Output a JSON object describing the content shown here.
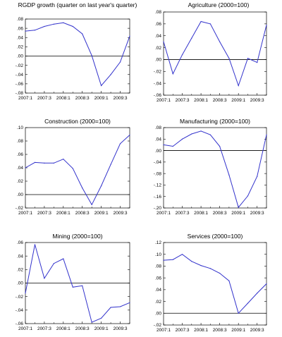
{
  "chart_data": [
    {
      "type": "line",
      "title": "RGDP growth (quarter on last year's quarter)",
      "x": [
        "2007:1",
        "2007:2",
        "2007:3",
        "2007:4",
        "2008:1",
        "2008:2",
        "2008:3",
        "2008:4",
        "2009:1",
        "2009:2",
        "2009:3",
        "2009:4"
      ],
      "xticks": [
        "2007:1",
        "2007:3",
        "2008:1",
        "2008:3",
        "2009:1",
        "2009:3"
      ],
      "ylim": [
        -0.08,
        0.08
      ],
      "yticks": [
        ".08",
        ".06",
        ".04",
        ".02",
        ".00",
        "-.02",
        "-.04",
        "-.06",
        "-.08"
      ],
      "values": [
        0.054,
        0.056,
        0.064,
        0.069,
        0.072,
        0.064,
        0.048,
        0.001,
        -0.064,
        -0.04,
        -0.013,
        0.043
      ],
      "color": "#3333cc"
    },
    {
      "type": "line",
      "title": "Agriculture (2000=100)",
      "x": [
        "2007:1",
        "2007:2",
        "2007:3",
        "2007:4",
        "2008:1",
        "2008:2",
        "2008:3",
        "2008:4",
        "2009:1",
        "2009:2",
        "2009:3",
        "2009:4"
      ],
      "xticks": [
        "2007:1",
        "2007:3",
        "2008:1",
        "2008:3",
        "2009:1",
        "2009:3"
      ],
      "ylim": [
        -0.06,
        0.08
      ],
      "yticks": [
        ".08",
        ".06",
        ".04",
        ".02",
        ".00",
        "-.02",
        "-.04",
        "-.06"
      ],
      "values": [
        0.03,
        -0.024,
        0.008,
        0.036,
        0.064,
        0.06,
        0.03,
        0.002,
        -0.044,
        0.002,
        -0.005,
        0.058
      ],
      "color": "#3333cc"
    },
    {
      "type": "line",
      "title": "Construction (2000=100)",
      "x": [
        "2007:1",
        "2007:2",
        "2007:3",
        "2007:4",
        "2008:1",
        "2008:2",
        "2008:3",
        "2008:4",
        "2009:1",
        "2009:2",
        "2009:3",
        "2009:4"
      ],
      "xticks": [
        "2007:1",
        "2007:3",
        "2008:1",
        "2008:3",
        "2009:1",
        "2009:3"
      ],
      "ylim": [
        -0.02,
        0.1
      ],
      "yticks": [
        ".10",
        ".08",
        ".06",
        ".04",
        ".02",
        ".00",
        "-.02"
      ],
      "values": [
        0.04,
        0.048,
        0.047,
        0.047,
        0.053,
        0.039,
        0.01,
        -0.015,
        0.013,
        0.045,
        0.076,
        0.089
      ],
      "color": "#3333cc"
    },
    {
      "type": "line",
      "title": "Manufacturing (2000=100)",
      "x": [
        "2007:1",
        "2007:2",
        "2007:3",
        "2007:4",
        "2008:1",
        "2008:2",
        "2008:3",
        "2008:4",
        "2009:1",
        "2009:2",
        "2009:3",
        "2009:4"
      ],
      "xticks": [
        "2007:1",
        "2007:3",
        "2008:1",
        "2008:3",
        "2009:1",
        "2009:3"
      ],
      "ylim": [
        -0.2,
        0.08
      ],
      "yticks": [
        ".08",
        ".04",
        ".00",
        "-.04",
        "-.08",
        "-.12",
        "-.16",
        "-.20"
      ],
      "values": [
        0.02,
        0.015,
        0.04,
        0.058,
        0.068,
        0.055,
        0.015,
        -0.085,
        -0.198,
        -0.158,
        -0.09,
        0.055
      ],
      "color": "#3333cc"
    },
    {
      "type": "line",
      "title": "Mining (2000=100)",
      "x": [
        "2007:1",
        "2007:2",
        "2007:3",
        "2007:4",
        "2008:1",
        "2008:2",
        "2008:3",
        "2008:4",
        "2009:1",
        "2009:2",
        "2009:3",
        "2009:4"
      ],
      "xticks": [
        "2007:1",
        "2007:3",
        "2008:1",
        "2008:3",
        "2009:1",
        "2009:3"
      ],
      "ylim": [
        -0.06,
        0.06
      ],
      "yticks": [
        ".06",
        ".04",
        ".02",
        ".00",
        "-.02",
        "-.04",
        "-.06"
      ],
      "values": [
        -0.015,
        0.057,
        0.007,
        0.029,
        0.036,
        -0.006,
        -0.004,
        -0.058,
        -0.052,
        -0.036,
        -0.035,
        -0.029
      ],
      "color": "#3333cc"
    },
    {
      "type": "line",
      "title": "Services (2000=100)",
      "x": [
        "2007:1",
        "2007:2",
        "2007:3",
        "2007:4",
        "2008:1",
        "2008:2",
        "2008:3",
        "2008:4",
        "2009:1",
        "2009:2",
        "2009:3",
        "2009:4"
      ],
      "xticks": [
        "2007:1",
        "2007:3",
        "2008:1",
        "2008:3",
        "2009:1",
        "2009:3"
      ],
      "ylim": [
        -0.02,
        0.12
      ],
      "yticks": [
        ".12",
        ".10",
        ".08",
        ".06",
        ".04",
        ".02",
        ".00",
        "-.02"
      ],
      "values": [
        0.09,
        0.091,
        0.1,
        0.088,
        0.081,
        0.076,
        0.068,
        0.055,
        0.0,
        0.017,
        0.034,
        0.05
      ],
      "color": "#3333cc"
    }
  ]
}
